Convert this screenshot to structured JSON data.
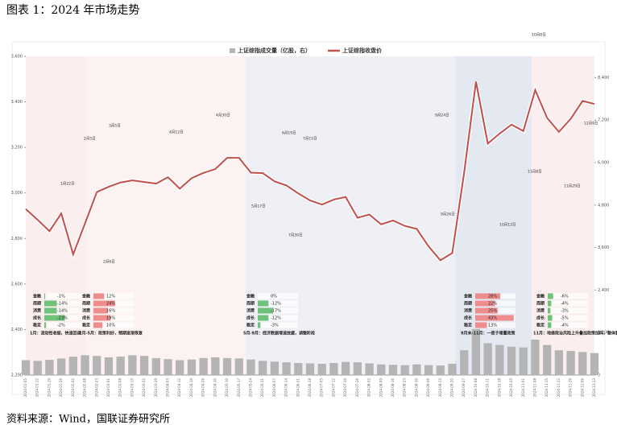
{
  "header": {
    "title": "图表 1：2024 年市场走势"
  },
  "footer": {
    "source": "资料来源：Wind，国联证券研究所"
  },
  "chart_data": {
    "type": "line",
    "categories": [
      "2024-01-05",
      "2024-01-12",
      "2024-01-19",
      "2024-01-26",
      "2024-02-02",
      "2024-02-08",
      "2024-02-23",
      "2024-03-01",
      "2024-03-08",
      "2024-03-15",
      "2024-03-22",
      "2024-03-29",
      "2024-04-03",
      "2024-04-12",
      "2024-04-19",
      "2024-04-26",
      "2024-04-30",
      "2024-05-10",
      "2024-05-17",
      "2024-05-24",
      "2024-05-31",
      "2024-06-07",
      "2024-06-14",
      "2024-06-21",
      "2024-06-28",
      "2024-07-05",
      "2024-07-12",
      "2024-07-19",
      "2024-07-26",
      "2024-08-02",
      "2024-08-09",
      "2024-08-16",
      "2024-08-23",
      "2024-08-30",
      "2024-09-06",
      "2024-09-13",
      "2024-09-20",
      "2024-09-27",
      "2024-10-08",
      "2024-10-11",
      "2024-10-18",
      "2024-10-25",
      "2024-11-01",
      "2024-11-08",
      "2024-11-15",
      "2024-11-22",
      "2024-11-29",
      "2024-12-06",
      "2024-12-13"
    ],
    "series": [
      {
        "name": "上证综指成交量（亿股，右）",
        "type": "bar",
        "axis": "y2",
        "color": "#b4b4b4",
        "values": [
          420,
          400,
          430,
          470,
          520,
          560,
          540,
          500,
          520,
          560,
          540,
          480,
          450,
          420,
          440,
          480,
          500,
          480,
          470,
          440,
          400,
          380,
          360,
          340,
          330,
          320,
          340,
          370,
          360,
          330,
          300,
          290,
          280,
          300,
          280,
          270,
          320,
          700,
          1300,
          900,
          850,
          800,
          780,
          1000,
          850,
          700,
          680,
          650,
          620
        ]
      },
      {
        "name": "上证综指收盘价",
        "type": "line",
        "color": "#c0504d",
        "values": [
          2929,
          2882,
          2832,
          2910,
          2730,
          2866,
          3004,
          3027,
          3046,
          3055,
          3048,
          3041,
          3069,
          3019,
          3065,
          3088,
          3105,
          3154,
          3154,
          3089,
          3087,
          3051,
          3033,
          2998,
          2967,
          2949,
          2971,
          2982,
          2891,
          2905,
          2862,
          2879,
          2855,
          2842,
          2765,
          2704,
          2736,
          3088,
          3489,
          3217,
          3261,
          3300,
          3272,
          3452,
          3330,
          3268,
          3326,
          3404,
          3391
        ]
      }
    ],
    "ylim": [
      2200,
      3600
    ],
    "yticks": [
      {
        "value": 2200,
        "label": "2,200"
      },
      {
        "value": 2400,
        "label": "2,400"
      },
      {
        "value": 2600,
        "label": "2,600"
      },
      {
        "value": 2800,
        "label": "2,800"
      },
      {
        "value": 3000,
        "label": "3,000"
      },
      {
        "value": 3200,
        "label": "3,200"
      },
      {
        "value": 3400,
        "label": "3,400"
      },
      {
        "value": 3600,
        "label": "3,600"
      }
    ],
    "y2lim": [
      0,
      9000
    ],
    "y2ticks": [
      0,
      {
        "value": 1200,
        "label": "1,200"
      },
      {
        "value": 2400,
        "label": "2,400"
      },
      {
        "value": 3600,
        "label": "3,600"
      },
      {
        "value": 4800,
        "label": "4,800"
      },
      {
        "value": 6000,
        "label": "6,000"
      },
      {
        "value": 7200,
        "label": "7,200"
      },
      {
        "value": 8400,
        "label": "8,400"
      }
    ],
    "annotations": [
      "1月22日",
      "2月5日",
      "2月6日",
      "3月5日",
      "4月12日",
      "4月30日",
      "5月17日",
      "6月19日",
      "7月15日",
      "7月30日",
      "9月24日",
      "9月26日",
      "10月8日",
      "10月12日",
      "11月8日",
      "11月29日",
      "12月9日"
    ],
    "style_returns": {
      "rows": [
        "金融",
        "周期",
        "消费",
        "成长",
        "稳定"
      ],
      "periods": [
        {
          "label": "1月：流动性收缩，快速回调",
          "values": [
            -1,
            -14,
            -14,
            -23,
            -2
          ],
          "value_labels": [
            "-1%",
            "-14%",
            "-14%",
            "-23%",
            "-2%"
          ]
        },
        {
          "label": "2月-5月：政策利好，预期逐渐恢复",
          "values": [
            12,
            24,
            16,
            19,
            10
          ],
          "value_labels": [
            "12%",
            "24%",
            "16%",
            "19%",
            "10%"
          ]
        },
        {
          "label": "5月-9月：经济数据增速放缓，调整阶段",
          "values": [
            0,
            -12,
            -17,
            -12,
            -3
          ],
          "value_labels": [
            "0%",
            "-12%",
            "-17%",
            "-12%",
            "-3%"
          ]
        },
        {
          "label": "9月末-11月：一揽子增量政策",
          "values": [
            28,
            22,
            25,
            43,
            13
          ],
          "value_labels": [
            "28%",
            "22%",
            "25%",
            "43%",
            "13%"
          ]
        },
        {
          "label": "11月：地缘政治风险上升叠加政策加码，整体震荡",
          "values": [
            -6,
            -4,
            -3,
            -5,
            -4
          ],
          "value_labels": [
            "-6%",
            "-4%",
            "-3%",
            "-5%",
            "-4%"
          ]
        }
      ]
    }
  }
}
